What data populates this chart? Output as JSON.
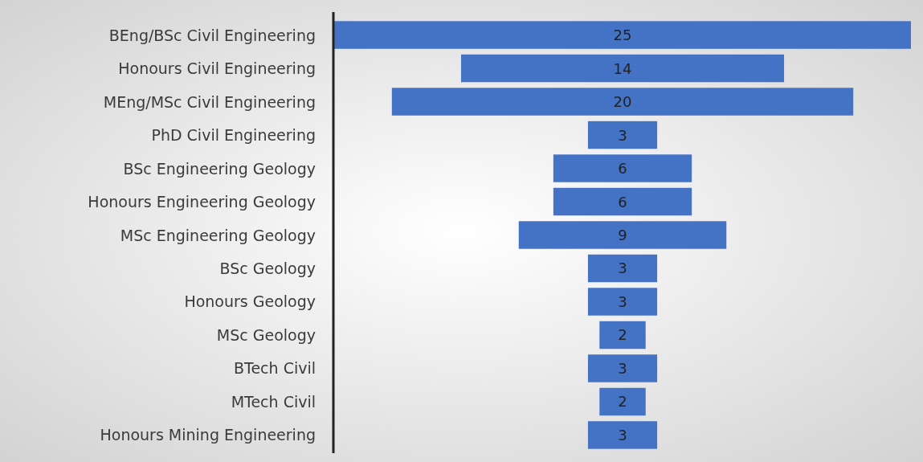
{
  "chart_data": {
    "type": "other",
    "categories": [
      "BEng/BSc Civil Engineering",
      "Honours Civil Engineering",
      "MEng/MSc Civil Engineering",
      "PhD Civil Engineering",
      "BSc Engineering Geology",
      "Honours Engineering Geology",
      "MSc Engineering Geology",
      "BSc Geology",
      "Honours Geology",
      "MSc Geology",
      "BTech Civil",
      "MTech Civil",
      "Honours Mining Engineering"
    ],
    "values": [
      25,
      14,
      20,
      3,
      6,
      6,
      9,
      3,
      3,
      2,
      3,
      2,
      3
    ],
    "color": "#4472c4",
    "data_labels": true
  }
}
